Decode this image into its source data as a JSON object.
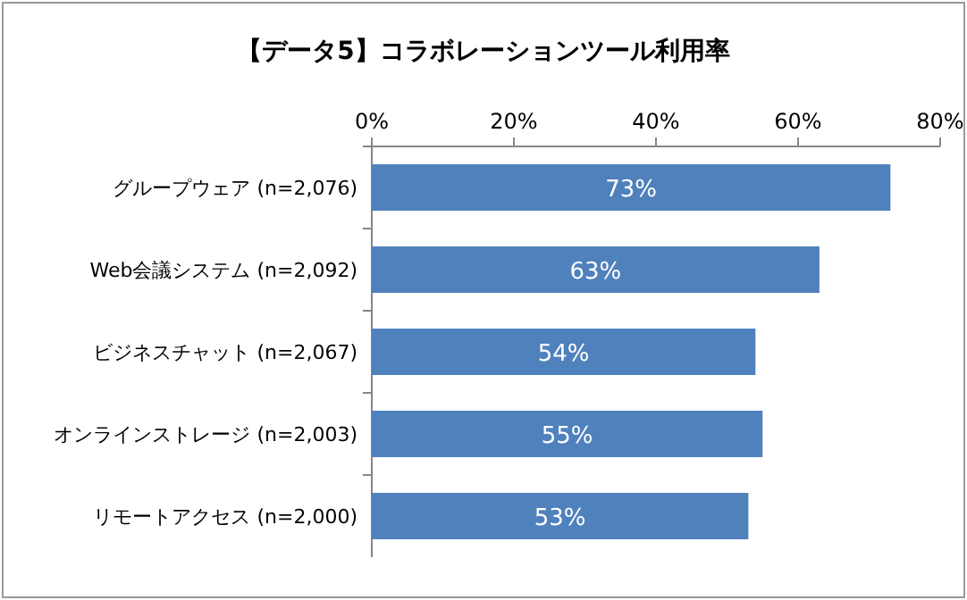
{
  "chart_data": {
    "type": "bar",
    "orientation": "horizontal",
    "title": "【データ5】コラボレーションツール利用率",
    "categories": [
      "グループウェア (n=2,076)",
      "Web会議システム (n=2,092)",
      "ビジネスチャット (n=2,067)",
      "オンラインストレージ (n=2,003)",
      "リモートアクセス (n=2,000)"
    ],
    "values": [
      73,
      63,
      54,
      55,
      53
    ],
    "value_labels": [
      "73%",
      "63%",
      "54%",
      "55%",
      "53%"
    ],
    "color": "#4f81bd",
    "xlim": [
      0,
      80
    ],
    "xticks": [
      {
        "value": 0,
        "label": "0%"
      },
      {
        "value": 20,
        "label": "20%"
      },
      {
        "value": 40,
        "label": "40%"
      },
      {
        "value": 60,
        "label": "60%"
      },
      {
        "value": 80,
        "label": "80%"
      }
    ]
  }
}
